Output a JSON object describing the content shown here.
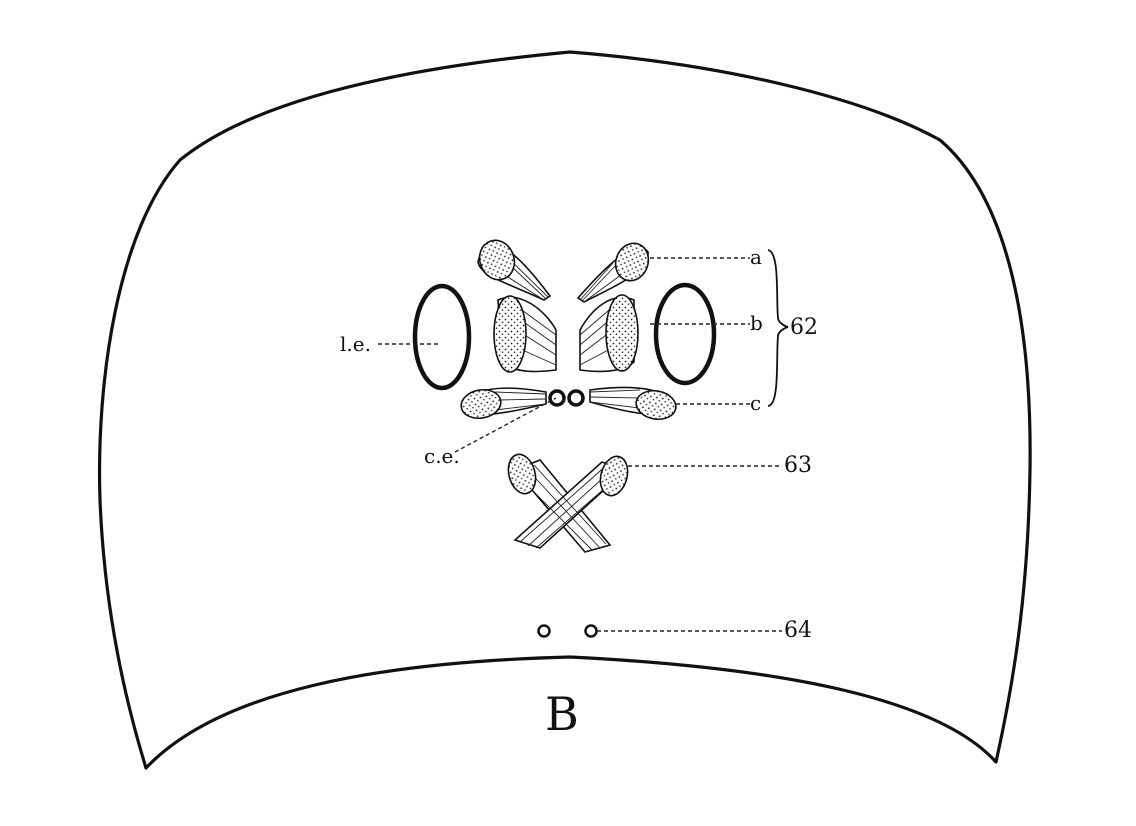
{
  "figure": {
    "letter": "B",
    "labels": {
      "lateral_eye": "l.e.",
      "central_eye": "c.e.",
      "a": "a",
      "b": "b",
      "c": "c",
      "group_62": "62",
      "muscle_63": "63",
      "pore_64": "64"
    }
  }
}
